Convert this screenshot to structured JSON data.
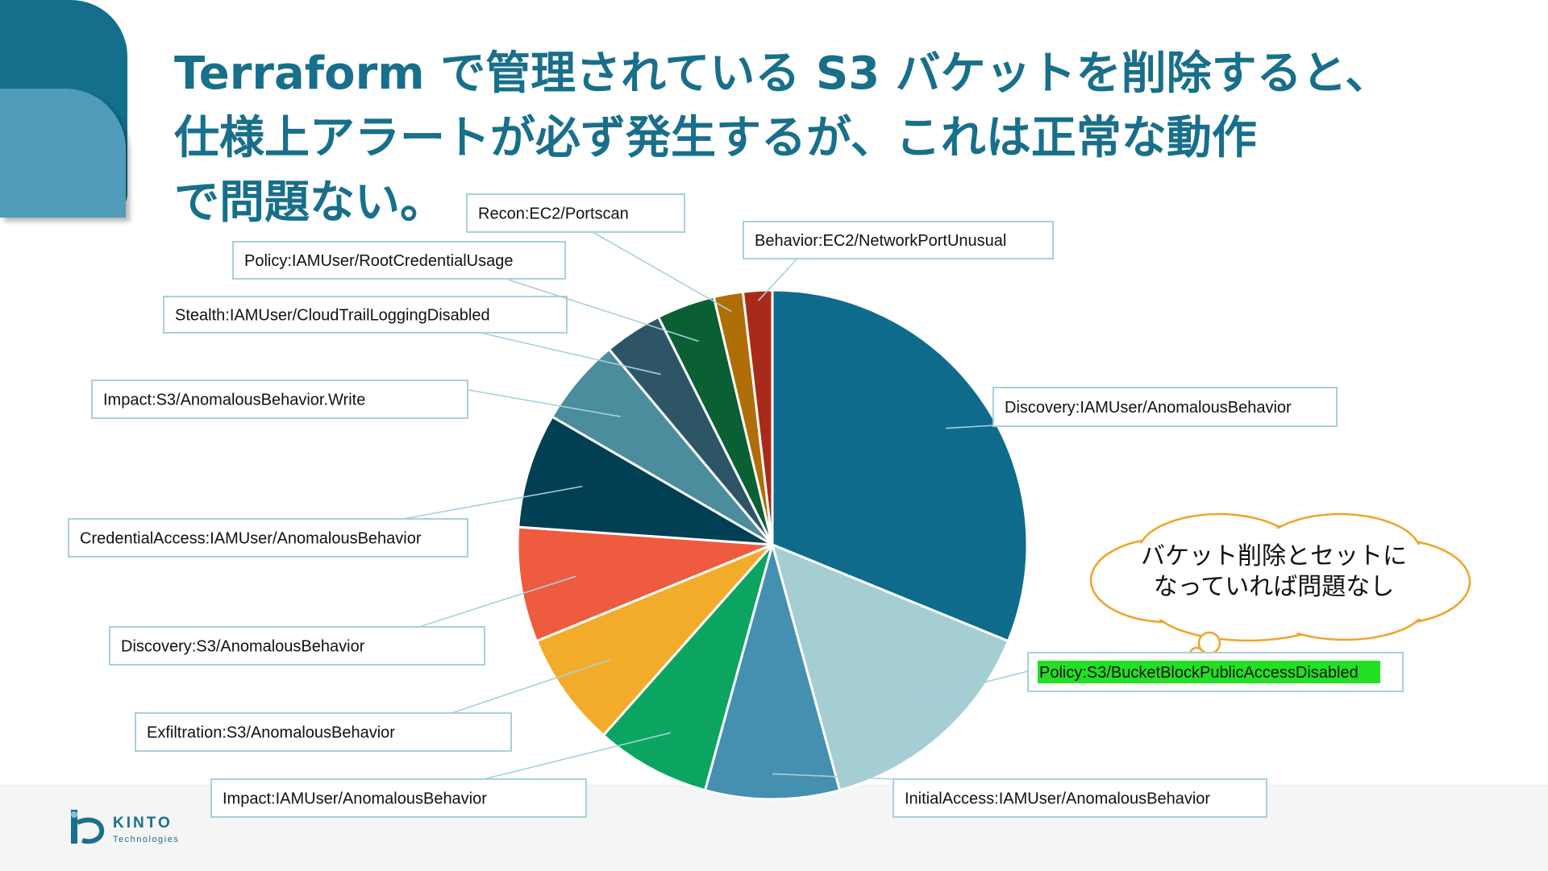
{
  "slide": {
    "title": "Terraform で管理されている S3 バケットを削除すると、\n仕様上アラートが必ず発生するが、これは正常な動作\nで問題ない。",
    "callout": "バケット削除とセットに\nなっていれば問題なし"
  },
  "logo": {
    "name": "KINTO",
    "sub": "Technologies"
  },
  "colors": {
    "title": "#186f8b",
    "callout_border": "#f0a428",
    "label_border": "#a9d0da",
    "highlight": "#22e022"
  },
  "chart_data": {
    "type": "pie",
    "start_angle_deg": 0,
    "direction": "clockwise",
    "slices": [
      {
        "label": "Discovery:IAMUser/AnomalousBehavior",
        "value": 30.4,
        "color": "#0e6b8c"
      },
      {
        "label": "Policy:S3/BucketBlockPublicAccessDisabled",
        "value": 14.2,
        "color": "#a5cdd4",
        "highlight": true
      },
      {
        "label": "InitialAccess:IAMUser/AnomalousBehavior",
        "value": 8.3,
        "color": "#4590b0"
      },
      {
        "label": "Impact:IAMUser/AnomalousBehavior",
        "value": 7.1,
        "color": "#0ba561"
      },
      {
        "label": "Exfiltration:S3/AnomalousBehavior",
        "value": 7.1,
        "color": "#f2ac2a"
      },
      {
        "label": "Discovery:S3/AnomalousBehavior",
        "value": 7.1,
        "color": "#ee5b3f"
      },
      {
        "label": "CredentialAccess:IAMUser/AnomalousBehavior",
        "value": 7.1,
        "color": "#003f54"
      },
      {
        "label": "Impact:S3/AnomalousBehavior.Write",
        "value": 5.4,
        "color": "#4b8d9c"
      },
      {
        "label": "Stealth:IAMUser/CloudTrailLoggingDisabled",
        "value": 3.6,
        "color": "#2d5566"
      },
      {
        "label": "Policy:IAMUser/RootCredentialUsage",
        "value": 3.6,
        "color": "#0b5f35"
      },
      {
        "label": "Recon:EC2/Portscan",
        "value": 1.8,
        "color": "#b06e06"
      },
      {
        "label": "Behavior:EC2/NetworkPortUnusual",
        "value": 1.8,
        "color": "#a92a1b"
      }
    ]
  }
}
